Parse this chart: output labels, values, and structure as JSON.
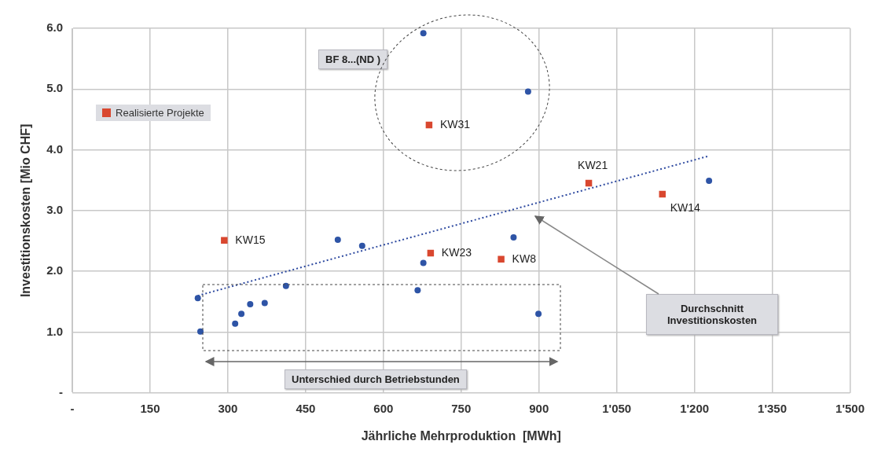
{
  "chart_data": {
    "type": "scatter",
    "xlabel": "Jährliche Mehrproduktion  [MWh]",
    "ylabel": "Investitionskosten [Mio CHF]",
    "xlim": [
      0,
      1500
    ],
    "ylim": [
      0,
      6
    ],
    "xticks": [
      {
        "value": 0,
        "label": "-"
      },
      150,
      300,
      450,
      600,
      750,
      900,
      {
        "value": 1050,
        "label": "1'050"
      },
      {
        "value": 1200,
        "label": "1'200"
      },
      {
        "value": 1350,
        "label": "1'350"
      },
      {
        "value": 1500,
        "label": "1'500"
      }
    ],
    "yticks": [
      {
        "value": 0,
        "label": "-"
      },
      {
        "value": 1,
        "label": "1.0"
      },
      {
        "value": 2,
        "label": "2.0"
      },
      {
        "value": 3,
        "label": "3.0"
      },
      {
        "value": 4,
        "label": "4.0"
      },
      {
        "value": 5,
        "label": "5.0"
      },
      {
        "value": 6,
        "label": "6.0"
      }
    ],
    "grid": true,
    "legend": "top left",
    "series": [
      {
        "color": "#2e54a6",
        "marker": "circle",
        "x": [
          677,
          879,
          1228,
          242,
          247,
          314,
          326,
          343,
          371,
          412,
          512,
          559,
          677,
          666,
          851,
          899
        ],
        "values": [
          5.92,
          4.96,
          3.49,
          1.56,
          1.01,
          1.14,
          1.3,
          1.46,
          1.48,
          1.76,
          2.52,
          2.42,
          2.14,
          1.69,
          2.56,
          1.3
        ]
      },
      {
        "name": "Realisierte Projekte",
        "color": "#d9472f",
        "marker": "square",
        "x": [
          688,
          996,
          1138,
          293,
          691,
          827
        ],
        "values": [
          4.41,
          3.45,
          3.27,
          2.51,
          2.3,
          2.2
        ]
      },
      {
        "type": "line",
        "color": "#2e4aa0",
        "marker": "none",
        "line_style": "dotted",
        "x": [
          242,
          1228
        ],
        "values": [
          1.6,
          3.9
        ]
      }
    ],
    "annotations": [
      {
        "text": "KW31",
        "x": 688,
        "y": 4.41
      },
      {
        "text": "KW21",
        "x": 996,
        "y": 3.45
      },
      {
        "text": "KW14",
        "x": 1138,
        "y": 3.27
      },
      {
        "text": "KW15",
        "x": 293,
        "y": 2.51
      },
      {
        "text": "KW23",
        "x": 691,
        "y": 2.3
      },
      {
        "text": "KW8",
        "x": 827,
        "y": 2.2
      },
      "BF 8...(ND )",
      "Durchschnitt Investitionskosten",
      "Unterschied durch Betriebstunden"
    ]
  }
}
